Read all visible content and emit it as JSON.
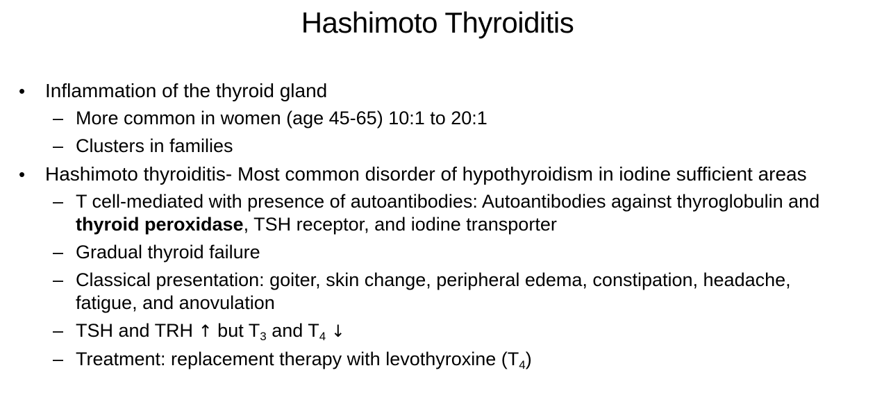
{
  "slide": {
    "title": "Hashimoto Thyroiditis",
    "bullet_char": "•",
    "dash_char": "–",
    "item1": {
      "text": "Inflammation of the thyroid gland",
      "sub1": "More common in women (age 45-65) 10:1 to 20:1",
      "sub2": "Clusters in families"
    },
    "item2": {
      "text": "Hashimoto thyroiditis- Most common disorder of hypothyroidism in iodine sufficient areas",
      "sub1_before": "T cell-mediated with presence of autoantibodies: Autoantibodies against thyroglobulin and ",
      "sub1_bold": "thyroid peroxidase",
      "sub1_after": ", TSH receptor, and iodine transporter",
      "sub2": "Gradual thyroid failure",
      "sub3": "Classical presentation: goiter, skin change, peripheral edema, constipation, headache, fatigue, and anovulation",
      "sub4_a": "TSH and TRH ",
      "sub4_up": "↑",
      "sub4_b": " but T",
      "sub4_sub3": "3",
      "sub4_c": " and T",
      "sub4_sub4": "4",
      "sub4_down": "↓",
      "sub5_a": "Treatment: replacement therapy with levothyroxine (T",
      "sub5_sub": "4",
      "sub5_b": ")"
    }
  }
}
